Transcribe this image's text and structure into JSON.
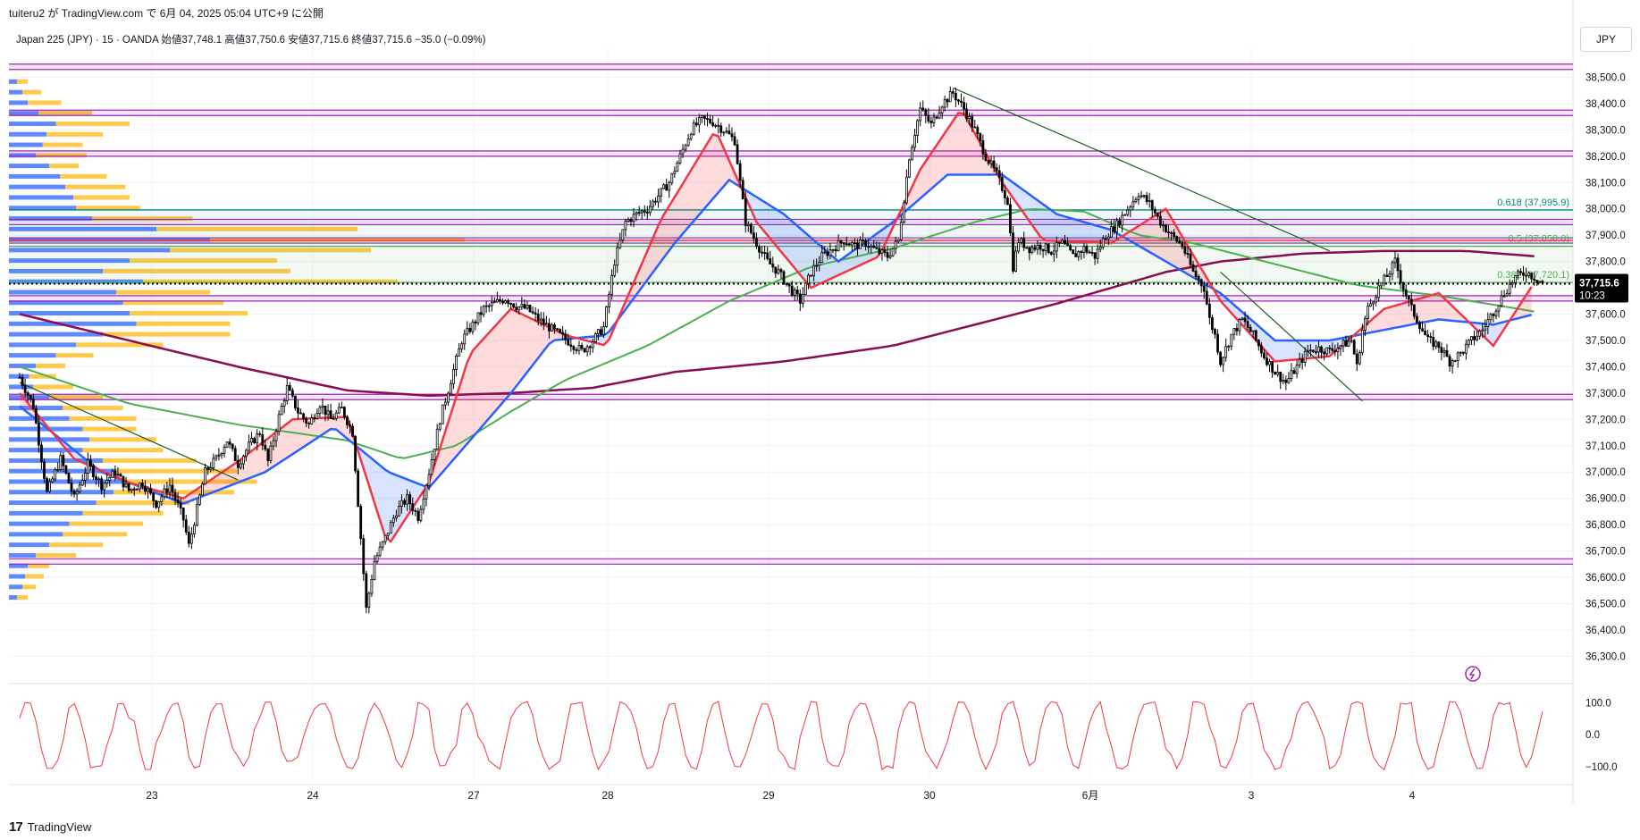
{
  "header": {
    "published": "tuiteru2 が TradingView.com で 6月 04, 2025 05:04 UTC+9 に公開"
  },
  "symbol": {
    "line": "Japan 225 (JPY) · 15 · OANDA  始値37,748.1  高値37,750.6  安値37,715.6  終値37,715.6  −35.0 (−0.09%)"
  },
  "currency": "JPY",
  "price_tag": {
    "price": "37,715.6",
    "countdown": "10:23"
  },
  "footer": {
    "brand": "TradingView",
    "mark": "17"
  },
  "colors": {
    "candle": "#000000",
    "ema_fast": "#f23645",
    "ema_mid": "#2962ff",
    "ma_green": "#4caf50",
    "ma_maroon": "#880e4f",
    "fib_teal": "#00897b",
    "fib_green": "#4caf50",
    "fib_red": "#e53935",
    "level_purple": "#9c27b0",
    "vp_blue": "#2962ff",
    "vp_orange": "#ffb300",
    "osc": "#f23645"
  },
  "chart_data": {
    "type": "candlestick",
    "y_ticks": [
      "38,500.0",
      "38,400.0",
      "38,300.0",
      "38,200.0",
      "38,100.0",
      "38,000.0",
      "37,900.0",
      "37,800.0",
      "37,700.0",
      "37,600.0",
      "37,500.0",
      "37,400.0",
      "37,300.0",
      "37,200.0",
      "37,100.0",
      "37,000.0",
      "36,900.0",
      "36,800.0",
      "36,700.0",
      "36,600.0",
      "36,500.0",
      "36,400.0",
      "36,300.0"
    ],
    "ylim": [
      36240,
      38590
    ],
    "x_ticks": [
      "23",
      "24",
      "27",
      "28",
      "29",
      "30",
      "6月",
      "3",
      "4"
    ],
    "fib_labels": [
      {
        "text": "0.618 (37,995.9)",
        "price": 37995.9,
        "color": "#00897b"
      },
      {
        "text": "0.5 (37,858.0)",
        "price": 37858.0,
        "color": "#4caf50"
      },
      {
        "text": "0.382 (37,720.1)",
        "price": 37720.1,
        "color": "#4caf50"
      }
    ],
    "horizontal_levels": [
      38540,
      38365,
      38210,
      37950,
      37880,
      37660,
      37285,
      36660
    ],
    "last_price": 37715.6,
    "price_path": [
      [
        0,
        37360
      ],
      [
        5,
        37250
      ],
      [
        10,
        36920
      ],
      [
        15,
        37050
      ],
      [
        20,
        36900
      ],
      [
        25,
        37030
      ],
      [
        30,
        36950
      ],
      [
        35,
        37000
      ],
      [
        40,
        36930
      ],
      [
        45,
        36960
      ],
      [
        50,
        36880
      ],
      [
        55,
        36950
      ],
      [
        60,
        36820
      ],
      [
        62,
        36720
      ],
      [
        65,
        36860
      ],
      [
        68,
        37000
      ],
      [
        72,
        37050
      ],
      [
        76,
        37120
      ],
      [
        80,
        37030
      ],
      [
        84,
        37100
      ],
      [
        88,
        37150
      ],
      [
        91,
        37040
      ],
      [
        95,
        37210
      ],
      [
        98,
        37320
      ],
      [
        102,
        37230
      ],
      [
        106,
        37180
      ],
      [
        110,
        37260
      ],
      [
        114,
        37200
      ],
      [
        118,
        37240
      ],
      [
        122,
        37150
      ],
      [
        125,
        36750
      ],
      [
        127,
        36480
      ],
      [
        130,
        36660
      ],
      [
        134,
        36750
      ],
      [
        138,
        36850
      ],
      [
        142,
        36900
      ],
      [
        146,
        36830
      ],
      [
        150,
        37000
      ],
      [
        154,
        37200
      ],
      [
        158,
        37350
      ],
      [
        162,
        37500
      ],
      [
        166,
        37560
      ],
      [
        170,
        37620
      ],
      [
        174,
        37640
      ],
      [
        178,
        37660
      ],
      [
        182,
        37630
      ],
      [
        186,
        37620
      ],
      [
        190,
        37580
      ],
      [
        194,
        37550
      ],
      [
        198,
        37520
      ],
      [
        202,
        37490
      ],
      [
        206,
        37460
      ],
      [
        210,
        37500
      ],
      [
        214,
        37550
      ],
      [
        218,
        37800
      ],
      [
        222,
        37950
      ],
      [
        226,
        37980
      ],
      [
        230,
        38000
      ],
      [
        234,
        38050
      ],
      [
        238,
        38100
      ],
      [
        242,
        38200
      ],
      [
        246,
        38300
      ],
      [
        250,
        38340
      ],
      [
        254,
        38330
      ],
      [
        258,
        38300
      ],
      [
        262,
        38260
      ],
      [
        264,
        38100
      ],
      [
        266,
        37950
      ],
      [
        270,
        37870
      ],
      [
        274,
        37800
      ],
      [
        278,
        37760
      ],
      [
        282,
        37700
      ],
      [
        286,
        37650
      ],
      [
        290,
        37760
      ],
      [
        294,
        37820
      ],
      [
        298,
        37850
      ],
      [
        302,
        37880
      ],
      [
        306,
        37860
      ],
      [
        310,
        37870
      ],
      [
        314,
        37840
      ],
      [
        318,
        37820
      ],
      [
        322,
        37880
      ],
      [
        326,
        38200
      ],
      [
        330,
        38380
      ],
      [
        334,
        38320
      ],
      [
        338,
        38400
      ],
      [
        342,
        38440
      ],
      [
        346,
        38380
      ],
      [
        350,
        38300
      ],
      [
        354,
        38200
      ],
      [
        358,
        38130
      ],
      [
        362,
        38030
      ],
      [
        364,
        37780
      ],
      [
        366,
        37880
      ],
      [
        370,
        37850
      ],
      [
        374,
        37860
      ],
      [
        378,
        37840
      ],
      [
        382,
        37870
      ],
      [
        386,
        37820
      ],
      [
        390,
        37850
      ],
      [
        394,
        37820
      ],
      [
        398,
        37900
      ],
      [
        402,
        37940
      ],
      [
        406,
        38000
      ],
      [
        410,
        38060
      ],
      [
        414,
        38020
      ],
      [
        418,
        37950
      ],
      [
        422,
        37900
      ],
      [
        426,
        37860
      ],
      [
        430,
        37760
      ],
      [
        434,
        37700
      ],
      [
        436,
        37580
      ],
      [
        438,
        37520
      ],
      [
        440,
        37420
      ],
      [
        444,
        37520
      ],
      [
        448,
        37580
      ],
      [
        452,
        37520
      ],
      [
        456,
        37440
      ],
      [
        460,
        37380
      ],
      [
        464,
        37340
      ],
      [
        468,
        37400
      ],
      [
        472,
        37460
      ],
      [
        476,
        37470
      ],
      [
        480,
        37460
      ],
      [
        484,
        37480
      ],
      [
        488,
        37500
      ],
      [
        490,
        37400
      ],
      [
        492,
        37540
      ],
      [
        494,
        37620
      ],
      [
        498,
        37700
      ],
      [
        502,
        37760
      ],
      [
        504,
        37800
      ],
      [
        507,
        37700
      ],
      [
        510,
        37620
      ],
      [
        513,
        37560
      ],
      [
        516,
        37500
      ],
      [
        520,
        37480
      ],
      [
        524,
        37420
      ],
      [
        528,
        37450
      ],
      [
        532,
        37500
      ],
      [
        536,
        37540
      ],
      [
        540,
        37610
      ],
      [
        544,
        37680
      ],
      [
        548,
        37740
      ],
      [
        552,
        37760
      ],
      [
        555,
        37740
      ],
      [
        558,
        37720
      ]
    ],
    "ema_fast": [
      [
        0,
        37300
      ],
      [
        20,
        37050
      ],
      [
        40,
        36960
      ],
      [
        60,
        36900
      ],
      [
        80,
        37040
      ],
      [
        100,
        37200
      ],
      [
        120,
        37210
      ],
      [
        135,
        36720
      ],
      [
        150,
        36960
      ],
      [
        165,
        37450
      ],
      [
        180,
        37620
      ],
      [
        200,
        37520
      ],
      [
        215,
        37480
      ],
      [
        235,
        37960
      ],
      [
        255,
        38300
      ],
      [
        270,
        37950
      ],
      [
        290,
        37700
      ],
      [
        315,
        37820
      ],
      [
        330,
        38150
      ],
      [
        345,
        38380
      ],
      [
        360,
        38100
      ],
      [
        375,
        37880
      ],
      [
        400,
        37870
      ],
      [
        420,
        38000
      ],
      [
        440,
        37650
      ],
      [
        460,
        37420
      ],
      [
        480,
        37440
      ],
      [
        500,
        37620
      ],
      [
        520,
        37680
      ],
      [
        540,
        37480
      ],
      [
        555,
        37720
      ]
    ],
    "ema_mid": [
      [
        0,
        37250
      ],
      [
        30,
        37000
      ],
      [
        60,
        36880
      ],
      [
        90,
        37000
      ],
      [
        115,
        37170
      ],
      [
        135,
        37000
      ],
      [
        150,
        36940
      ],
      [
        165,
        37120
      ],
      [
        180,
        37300
      ],
      [
        195,
        37500
      ],
      [
        215,
        37520
      ],
      [
        240,
        37870
      ],
      [
        260,
        38110
      ],
      [
        280,
        37980
      ],
      [
        300,
        37800
      ],
      [
        320,
        37950
      ],
      [
        340,
        38130
      ],
      [
        360,
        38130
      ],
      [
        380,
        37980
      ],
      [
        400,
        37920
      ],
      [
        420,
        37800
      ],
      [
        440,
        37680
      ],
      [
        460,
        37500
      ],
      [
        480,
        37500
      ],
      [
        500,
        37540
      ],
      [
        520,
        37580
      ],
      [
        540,
        37560
      ],
      [
        555,
        37600
      ]
    ],
    "ma_green": [
      [
        0,
        37400
      ],
      [
        40,
        37260
      ],
      [
        80,
        37180
      ],
      [
        120,
        37120
      ],
      [
        140,
        37050
      ],
      [
        160,
        37100
      ],
      [
        180,
        37230
      ],
      [
        200,
        37350
      ],
      [
        230,
        37480
      ],
      [
        260,
        37650
      ],
      [
        290,
        37780
      ],
      [
        320,
        37850
      ],
      [
        350,
        37950
      ],
      [
        370,
        38000
      ],
      [
        390,
        37990
      ],
      [
        410,
        37900
      ],
      [
        430,
        37870
      ],
      [
        460,
        37790
      ],
      [
        490,
        37710
      ],
      [
        520,
        37670
      ],
      [
        555,
        37610
      ]
    ],
    "ma_maroon": [
      [
        0,
        37600
      ],
      [
        40,
        37500
      ],
      [
        80,
        37400
      ],
      [
        120,
        37310
      ],
      [
        150,
        37290
      ],
      [
        180,
        37300
      ],
      [
        210,
        37320
      ],
      [
        240,
        37380
      ],
      [
        280,
        37420
      ],
      [
        320,
        37480
      ],
      [
        350,
        37560
      ],
      [
        380,
        37640
      ],
      [
        400,
        37700
      ],
      [
        420,
        37760
      ],
      [
        440,
        37800
      ],
      [
        470,
        37830
      ],
      [
        500,
        37840
      ],
      [
        530,
        37840
      ],
      [
        555,
        37820
      ]
    ]
  },
  "oscillator": {
    "ticks": [
      "100.0",
      "0.0",
      "−100.0"
    ],
    "ylim": [
      -140,
      130
    ]
  },
  "volume_profile": {
    "bins": [
      {
        "price": 38480,
        "blue": 6,
        "orange": 8
      },
      {
        "price": 38440,
        "blue": 10,
        "orange": 14
      },
      {
        "price": 38400,
        "blue": 14,
        "orange": 25
      },
      {
        "price": 38360,
        "blue": 22,
        "orange": 40
      },
      {
        "price": 38320,
        "blue": 35,
        "orange": 55
      },
      {
        "price": 38280,
        "blue": 28,
        "orange": 42
      },
      {
        "price": 38240,
        "blue": 25,
        "orange": 30
      },
      {
        "price": 38200,
        "blue": 20,
        "orange": 38
      },
      {
        "price": 38160,
        "blue": 30,
        "orange": 22
      },
      {
        "price": 38120,
        "blue": 38,
        "orange": 35
      },
      {
        "price": 38080,
        "blue": 42,
        "orange": 45
      },
      {
        "price": 38040,
        "blue": 48,
        "orange": 42
      },
      {
        "price": 38000,
        "blue": 50,
        "orange": 48
      },
      {
        "price": 37960,
        "blue": 62,
        "orange": 75
      },
      {
        "price": 37920,
        "blue": 110,
        "orange": 150
      },
      {
        "price": 37880,
        "blue": 150,
        "orange": 190
      },
      {
        "price": 37840,
        "blue": 120,
        "orange": 150
      },
      {
        "price": 37800,
        "blue": 90,
        "orange": 110
      },
      {
        "price": 37760,
        "blue": 70,
        "orange": 140
      },
      {
        "price": 37720,
        "blue": 100,
        "orange": 190
      },
      {
        "price": 37680,
        "blue": 80,
        "orange": 70
      },
      {
        "price": 37640,
        "blue": 85,
        "orange": 75
      },
      {
        "price": 37600,
        "blue": 90,
        "orange": 88
      },
      {
        "price": 37560,
        "blue": 95,
        "orange": 70
      },
      {
        "price": 37520,
        "blue": 70,
        "orange": 95
      },
      {
        "price": 37480,
        "blue": 50,
        "orange": 65
      },
      {
        "price": 37440,
        "blue": 35,
        "orange": 28
      },
      {
        "price": 37400,
        "blue": 20,
        "orange": 22
      },
      {
        "price": 37360,
        "blue": 15,
        "orange": 20
      },
      {
        "price": 37320,
        "blue": 18,
        "orange": 30
      },
      {
        "price": 37280,
        "blue": 30,
        "orange": 40
      },
      {
        "price": 37240,
        "blue": 40,
        "orange": 45
      },
      {
        "price": 37200,
        "blue": 45,
        "orange": 50
      },
      {
        "price": 37160,
        "blue": 55,
        "orange": 40
      },
      {
        "price": 37120,
        "blue": 60,
        "orange": 50
      },
      {
        "price": 37080,
        "blue": 55,
        "orange": 60
      },
      {
        "price": 37040,
        "blue": 70,
        "orange": 70
      },
      {
        "price": 37000,
        "blue": 80,
        "orange": 90
      },
      {
        "price": 36960,
        "blue": 85,
        "orange": 100
      },
      {
        "price": 36920,
        "blue": 78,
        "orange": 90
      },
      {
        "price": 36880,
        "blue": 65,
        "orange": 70
      },
      {
        "price": 36840,
        "blue": 55,
        "orange": 60
      },
      {
        "price": 36800,
        "blue": 45,
        "orange": 55
      },
      {
        "price": 36760,
        "blue": 40,
        "orange": 48
      },
      {
        "price": 36720,
        "blue": 30,
        "orange": 40
      },
      {
        "price": 36680,
        "blue": 20,
        "orange": 30
      },
      {
        "price": 36640,
        "blue": 14,
        "orange": 16
      },
      {
        "price": 36600,
        "blue": 12,
        "orange": 14
      },
      {
        "price": 36560,
        "blue": 10,
        "orange": 10
      },
      {
        "price": 36520,
        "blue": 6,
        "orange": 8
      }
    ]
  }
}
